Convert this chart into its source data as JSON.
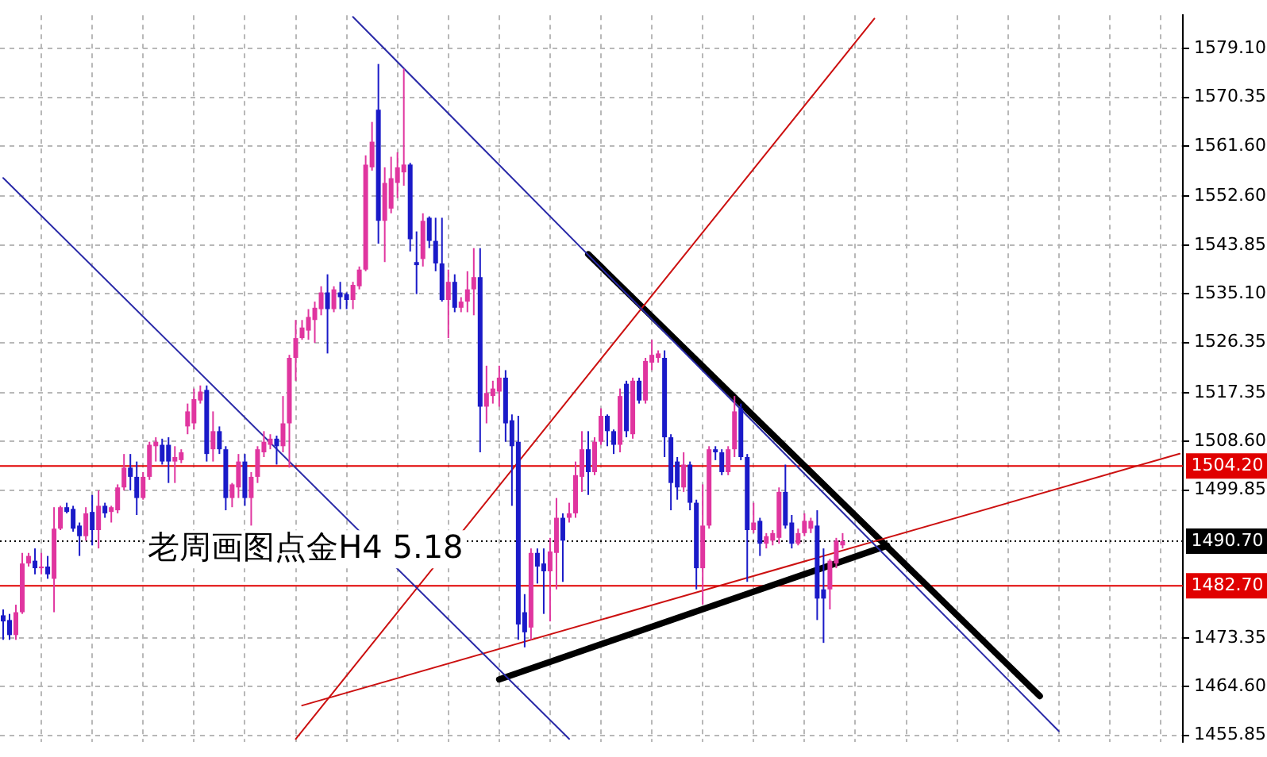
{
  "chart_data": {
    "type": "candlestick",
    "categories": [
      null,
      null,
      null,
      null,
      null,
      null,
      null,
      null,
      null,
      null,
      null,
      null,
      null,
      null,
      null,
      null,
      null,
      null,
      null,
      null,
      null,
      null,
      null,
      null,
      null,
      null,
      null,
      null,
      null,
      null,
      null,
      null,
      null,
      null,
      null,
      null,
      null,
      null,
      null,
      null,
      null,
      null,
      null,
      null,
      null,
      null,
      null,
      null,
      null,
      null,
      null,
      null,
      null,
      null,
      null,
      null,
      null,
      null,
      null,
      null,
      null,
      null,
      null,
      null,
      null,
      null,
      null,
      null,
      null,
      null,
      null,
      null,
      null,
      null,
      null,
      null,
      null,
      null,
      null,
      null,
      null,
      null,
      null,
      null,
      null,
      null,
      null,
      null,
      null,
      null,
      null,
      null,
      null,
      null,
      null,
      null,
      null,
      null,
      null,
      null,
      null,
      null,
      null,
      null,
      null,
      null,
      null,
      null,
      null,
      null,
      null,
      null,
      null,
      null,
      null,
      null,
      null,
      null,
      null,
      null,
      null,
      null,
      null,
      null,
      null,
      null,
      null,
      null,
      null,
      null,
      null,
      null,
      null,
      null,
      null,
      null,
      null,
      null,
      null,
      null,
      null,
      null,
      null,
      null,
      null,
      null,
      null,
      null,
      null,
      null,
      null,
      null,
      null,
      null,
      null,
      null,
      null,
      null,
      null,
      null,
      null,
      null,
      null,
      null,
      null,
      null,
      null,
      null,
      null,
      null,
      null,
      null,
      null,
      null,
      null,
      null,
      null,
      null,
      null,
      null,
      null,
      null,
      null,
      null,
      null,
      null
    ],
    "ohlc": [
      [
        1477.4,
        1478.45,
        1473.0,
        1476.3
      ],
      [
        1476.55,
        1477.65,
        1473.0,
        1473.85
      ],
      [
        1473.85,
        1479.3,
        1473.0,
        1477.95
      ],
      [
        1477.95,
        1488.6,
        1477.65,
        1486.7
      ],
      [
        1486.7,
        1488.6,
        1486.15,
        1488.05
      ],
      [
        1487.2,
        1489.4,
        1484.75,
        1485.85
      ],
      [
        1485.85,
        1488.6,
        1484.75,
        1486.15
      ],
      [
        1486.15,
        1488.05,
        1483.95,
        1484.75
      ],
      [
        1483.95,
        1496.8,
        1477.95,
        1492.95
      ],
      [
        1492.95,
        1497.05,
        1492.7,
        1496.8
      ],
      [
        1496.8,
        1497.6,
        1495.7,
        1495.95
      ],
      [
        1496.5,
        1497.05,
        1492.4,
        1492.95
      ],
      [
        1493.5,
        1494.05,
        1488.05,
        1491.6
      ],
      [
        1491.6,
        1496.8,
        1490.8,
        1495.7
      ],
      [
        1495.95,
        1499.0,
        1489.95,
        1492.7
      ],
      [
        1492.7,
        1499.8,
        1489.4,
        1497.05
      ],
      [
        1497.05,
        1497.6,
        1494.9,
        1495.7
      ],
      [
        1495.95,
        1497.05,
        1494.05,
        1496.8
      ],
      [
        1496.25,
        1500.9,
        1495.7,
        1500.35
      ],
      [
        1500.35,
        1506.35,
        1499.8,
        1503.9
      ],
      [
        1503.9,
        1506.35,
        1499.8,
        1502.25
      ],
      [
        1502.25,
        1505.0,
        1495.4,
        1498.45
      ],
      [
        1498.45,
        1503.1,
        1498.15,
        1502.25
      ],
      [
        1502.25,
        1508.55,
        1501.7,
        1508.0
      ],
      [
        1507.75,
        1509.35,
        1505.0,
        1508.55
      ],
      [
        1508.0,
        1509.1,
        1504.45,
        1505.0
      ],
      [
        1508.0,
        1509.35,
        1501.15,
        1505.0
      ],
      [
        1505.0,
        1507.75,
        1501.15,
        1505.8
      ],
      [
        1505.25,
        1507.2,
        1504.7,
        1506.65
      ],
      [
        1511.3,
        1515.4,
        1509.9,
        1514.0
      ],
      [
        1511.85,
        1518.1,
        1510.75,
        1516.2
      ],
      [
        1515.95,
        1518.65,
        1515.4,
        1517.55
      ],
      [
        1517.85,
        1518.65,
        1505.0,
        1506.35
      ],
      [
        1507.2,
        1514.0,
        1505.0,
        1510.45
      ],
      [
        1510.45,
        1511.3,
        1506.35,
        1507.2
      ],
      [
        1507.2,
        1507.75,
        1496.25,
        1498.45
      ],
      [
        1498.45,
        1501.15,
        1496.8,
        1500.9
      ],
      [
        1500.35,
        1506.35,
        1498.45,
        1505.0
      ],
      [
        1505.0,
        1506.35,
        1497.05,
        1498.45
      ],
      [
        1498.45,
        1503.1,
        1493.5,
        1502.25
      ],
      [
        1502.25,
        1507.75,
        1501.15,
        1507.2
      ],
      [
        1506.65,
        1510.45,
        1505.8,
        1508.55
      ],
      [
        1508.0,
        1509.9,
        1507.2,
        1509.1
      ],
      [
        1509.1,
        1509.65,
        1504.45,
        1507.75
      ],
      [
        1507.75,
        1516.75,
        1506.65,
        1511.85
      ],
      [
        1511.85,
        1524.15,
        1503.9,
        1523.6
      ],
      [
        1523.6,
        1530.4,
        1519.5,
        1527.15
      ],
      [
        1527.15,
        1530.4,
        1526.85,
        1529.05
      ],
      [
        1528.5,
        1532.35,
        1526.85,
        1530.95
      ],
      [
        1530.4,
        1533.7,
        1526.3,
        1532.6
      ],
      [
        1532.35,
        1536.45,
        1531.25,
        1535.35
      ],
      [
        1535.35,
        1538.6,
        1524.4,
        1532.35
      ],
      [
        1532.35,
        1536.45,
        1531.8,
        1535.9
      ],
      [
        1535.35,
        1537.25,
        1532.35,
        1534.5
      ],
      [
        1535.05,
        1535.35,
        1532.35,
        1534.0
      ],
      [
        1534.0,
        1537.25,
        1532.35,
        1536.7
      ],
      [
        1536.45,
        1540.0,
        1535.9,
        1539.45
      ],
      [
        1539.45,
        1559.95,
        1539.15,
        1558.3
      ],
      [
        1557.8,
        1565.95,
        1557.2,
        1562.4
      ],
      [
        1568.15,
        1576.35,
        1544.1,
        1548.2
      ],
      [
        1548.2,
        1557.8,
        1540.8,
        1555.0
      ],
      [
        1550.4,
        1559.7,
        1549.55,
        1555.85
      ],
      [
        1555.0,
        1560.5,
        1552.3,
        1557.8
      ],
      [
        1556.9,
        1575.5,
        1554.5,
        1558.3
      ],
      [
        1558.3,
        1558.6,
        1542.7,
        1544.9
      ],
      [
        1540.8,
        1546.3,
        1535.05,
        1540.25
      ],
      [
        1541.35,
        1549.55,
        1540.0,
        1548.2
      ],
      [
        1548.75,
        1549.0,
        1543.3,
        1544.6
      ],
      [
        1544.6,
        1548.75,
        1539.15,
        1540.55
      ],
      [
        1540.55,
        1548.75,
        1533.7,
        1534.0
      ],
      [
        1534.0,
        1539.45,
        1527.15,
        1537.25
      ],
      [
        1537.25,
        1538.6,
        1531.8,
        1532.6
      ],
      [
        1532.6,
        1534.5,
        1531.8,
        1533.7
      ],
      [
        1533.7,
        1539.15,
        1531.8,
        1535.9
      ],
      [
        1535.9,
        1543.3,
        1531.25,
        1538.1
      ],
      [
        1538.1,
        1543.3,
        1506.65,
        1514.85
      ],
      [
        1514.85,
        1522.2,
        1511.85,
        1517.3
      ],
      [
        1516.75,
        1519.5,
        1515.4,
        1518.1
      ],
      [
        1517.55,
        1522.2,
        1514.85,
        1520.05
      ],
      [
        1520.05,
        1521.4,
        1508.55,
        1511.85
      ],
      [
        1512.4,
        1513.45,
        1497.05,
        1507.75
      ],
      [
        1508.55,
        1513.2,
        1473.0,
        1475.75
      ],
      [
        1477.95,
        1481.2,
        1471.65,
        1474.35
      ],
      [
        1475.2,
        1489.4,
        1473.0,
        1488.6
      ],
      [
        1488.6,
        1489.4,
        1483.1,
        1486.15
      ],
      [
        1486.7,
        1489.4,
        1477.65,
        1485.3
      ],
      [
        1485.3,
        1491.3,
        1476.3,
        1488.85
      ],
      [
        1488.6,
        1498.45,
        1482.05,
        1494.9
      ],
      [
        1494.9,
        1495.7,
        1483.4,
        1490.8
      ],
      [
        1494.9,
        1497.6,
        1494.05,
        1495.7
      ],
      [
        1495.7,
        1505.0,
        1494.9,
        1502.55
      ],
      [
        1502.25,
        1510.45,
        1499.55,
        1507.2
      ],
      [
        1507.2,
        1510.45,
        1499.0,
        1503.1
      ],
      [
        1503.1,
        1509.35,
        1502.55,
        1508.55
      ],
      [
        1508.55,
        1514.55,
        1508.0,
        1513.2
      ],
      [
        1513.2,
        1513.45,
        1507.75,
        1510.45
      ],
      [
        1510.45,
        1510.75,
        1506.35,
        1508.0
      ],
      [
        1508.0,
        1518.1,
        1506.65,
        1516.75
      ],
      [
        1518.95,
        1519.5,
        1509.35,
        1510.45
      ],
      [
        1509.9,
        1520.05,
        1509.1,
        1519.5
      ],
      [
        1519.5,
        1520.05,
        1515.4,
        1515.95
      ],
      [
        1515.95,
        1523.6,
        1515.4,
        1523.05
      ],
      [
        1522.75,
        1526.85,
        1521.4,
        1524.15
      ],
      [
        1523.6,
        1524.95,
        1522.75,
        1524.4
      ],
      [
        1523.6,
        1524.95,
        1505.8,
        1509.35
      ],
      [
        1509.35,
        1509.9,
        1496.25,
        1501.15
      ],
      [
        1505.0,
        1505.8,
        1498.15,
        1500.35
      ],
      [
        1500.35,
        1506.65,
        1499.55,
        1504.45
      ],
      [
        1504.45,
        1505.0,
        1496.25,
        1497.6
      ],
      [
        1497.6,
        1498.15,
        1482.05,
        1485.85
      ],
      [
        1485.85,
        1500.9,
        1479.3,
        1493.5
      ],
      [
        1493.5,
        1507.75,
        1492.95,
        1507.2
      ],
      [
        1507.2,
        1507.75,
        1505.25,
        1506.65
      ],
      [
        1506.65,
        1507.2,
        1502.55,
        1503.1
      ],
      [
        1503.1,
        1507.75,
        1502.55,
        1507.2
      ],
      [
        1507.2,
        1516.75,
        1505.8,
        1514.0
      ],
      [
        1514.55,
        1515.4,
        1505.25,
        1505.8
      ],
      [
        1505.8,
        1506.35,
        1483.4,
        1492.7
      ],
      [
        1492.7,
        1497.6,
        1492.15,
        1494.05
      ],
      [
        1494.35,
        1494.9,
        1488.05,
        1490.25
      ],
      [
        1490.25,
        1492.15,
        1489.4,
        1491.6
      ],
      [
        1490.8,
        1492.7,
        1489.95,
        1492.15
      ],
      [
        1491.3,
        1500.35,
        1490.25,
        1499.55
      ],
      [
        1499.55,
        1504.45,
        1492.95,
        1493.5
      ],
      [
        1494.05,
        1495.4,
        1489.4,
        1490.25
      ],
      [
        1490.25,
        1492.95,
        1489.95,
        1492.15
      ],
      [
        1492.15,
        1495.7,
        1491.6,
        1494.35
      ],
      [
        1492.95,
        1494.9,
        1492.15,
        1494.35
      ],
      [
        1493.5,
        1496.25,
        1476.55,
        1480.4
      ],
      [
        1482.05,
        1489.4,
        1472.45,
        1480.4
      ],
      [
        1482.05,
        1487.5,
        1478.45,
        1487.2
      ],
      [
        1486.7,
        1491.3,
        1485.85,
        1490.8
      ],
      [
        1489.95,
        1492.15,
        1489.4,
        1490.7
      ],
      null,
      null,
      null,
      null,
      null,
      null,
      null,
      null,
      null,
      null,
      null,
      null,
      null,
      null,
      null,
      null,
      null,
      null,
      null,
      null,
      null,
      null,
      null,
      null,
      null,
      null,
      null,
      null,
      null,
      null,
      null,
      null,
      null,
      null,
      null,
      null,
      null,
      null,
      null,
      null,
      null,
      null,
      null,
      null,
      null,
      null,
      null,
      null,
      null,
      null,
      null,
      null,
      null
    ],
    "colors": [
      "#1a1ac8",
      "#1a1ac8",
      "#e0359f",
      "#e0359f",
      "#e0359f",
      "#1a1ac8",
      "#e0359f",
      "#1a1ac8",
      "#e0359f",
      "#e0359f",
      "#1a1ac8",
      "#1a1ac8",
      "#1a1ac8",
      "#e0359f",
      "#1a1ac8",
      "#e0359f",
      "#1a1ac8",
      "#e0359f",
      "#e0359f",
      "#e0359f",
      "#1a1ac8",
      "#1a1ac8",
      "#e0359f",
      "#e0359f",
      "#e0359f",
      "#1a1ac8",
      "#1a1ac8",
      "#e0359f",
      "#e0359f",
      "#e0359f",
      "#e0359f",
      "#e0359f",
      "#1a1ac8",
      "#e0359f",
      "#1a1ac8",
      "#1a1ac8",
      "#e0359f",
      "#e0359f",
      "#1a1ac8",
      "#e0359f",
      "#e0359f",
      "#e0359f",
      "#e0359f",
      "#1a1ac8",
      "#e0359f",
      "#e0359f",
      "#e0359f",
      "#e0359f",
      "#e0359f",
      "#e0359f",
      "#e0359f",
      "#1a1ac8",
      "#e0359f",
      "#1a1ac8",
      "#1a1ac8",
      "#e0359f",
      "#e0359f",
      "#e0359f",
      "#e0359f",
      "#1a1ac8",
      "#e0359f",
      "#e0359f",
      "#e0359f",
      "#e0359f",
      "#1a1ac8",
      "#1a1ac8",
      "#e0359f",
      "#1a1ac8",
      "#1a1ac8",
      "#1a1ac8",
      "#e0359f",
      "#1a1ac8",
      "#e0359f",
      "#e0359f",
      "#e0359f",
      "#1a1ac8",
      "#e0359f",
      "#e0359f",
      "#e0359f",
      "#1a1ac8",
      "#1a1ac8",
      "#1a1ac8",
      "#1a1ac8",
      "#e0359f",
      "#1a1ac8",
      "#1a1ac8",
      "#e0359f",
      "#e0359f",
      "#1a1ac8",
      "#e0359f",
      "#e0359f",
      "#e0359f",
      "#1a1ac8",
      "#e0359f",
      "#e0359f",
      "#1a1ac8",
      "#1a1ac8",
      "#e0359f",
      "#1a1ac8",
      "#e0359f",
      "#1a1ac8",
      "#e0359f",
      "#e0359f",
      "#e0359f",
      "#1a1ac8",
      "#1a1ac8",
      "#1a1ac8",
      "#e0359f",
      "#1a1ac8",
      "#1a1ac8",
      "#e0359f",
      "#e0359f",
      "#1a1ac8",
      "#1a1ac8",
      "#e0359f",
      "#e0359f",
      "#1a1ac8",
      "#1a1ac8",
      "#e0359f",
      "#1a1ac8",
      "#e0359f",
      "#e0359f",
      "#e0359f",
      "#1a1ac8",
      "#1a1ac8",
      "#e0359f",
      "#e0359f",
      "#e0359f",
      "#1a1ac8",
      "#1a1ac8",
      "#e0359f",
      "#e0359f",
      "#e0359f",
      null,
      null,
      null,
      null,
      null,
      null,
      null,
      null,
      null,
      null,
      null,
      null,
      null,
      null,
      null,
      null,
      null,
      null,
      null,
      null,
      null,
      null,
      null,
      null,
      null,
      null,
      null,
      null,
      null,
      null,
      null,
      null,
      null,
      null,
      null,
      null,
      null,
      null,
      null,
      null,
      null,
      null,
      null,
      null,
      null,
      null,
      null,
      null,
      null,
      null,
      null,
      null,
      null
    ],
    "series": [
      {
        "type": "line",
        "color": "#2a2aa8",
        "values": [
          1555.9,
          null,
          null,
          null,
          null,
          null,
          null,
          null,
          null,
          null,
          null,
          null,
          null,
          null,
          null,
          null,
          null,
          null,
          null,
          null,
          null,
          null,
          null,
          null,
          null,
          null,
          null,
          null,
          null,
          null,
          null,
          null,
          null,
          null,
          null,
          null,
          null,
          null,
          null,
          null,
          null,
          null,
          null,
          null,
          null,
          null,
          null,
          null,
          null,
          null,
          null,
          null,
          null,
          null,
          null,
          null,
          null,
          null,
          null,
          null,
          null,
          null,
          null,
          null,
          null,
          null,
          null,
          null,
          null,
          null,
          null,
          null,
          null,
          null,
          null,
          null,
          null,
          null,
          null,
          null,
          null,
          null,
          null,
          null,
          null,
          null,
          null,
          null,
          null,
          1455.2,
          null,
          null,
          null,
          null,
          null,
          null,
          null,
          null,
          null,
          null,
          null,
          null,
          null,
          null,
          null,
          null,
          null,
          null,
          null,
          null,
          null,
          null,
          null,
          null,
          null,
          null,
          null,
          null,
          null,
          null,
          null,
          null,
          null,
          null,
          null,
          null,
          null,
          null,
          null,
          null,
          null,
          null,
          null,
          null,
          null,
          null,
          null,
          null,
          null,
          null,
          null,
          null,
          null,
          null,
          null,
          null,
          null,
          null,
          null,
          null,
          null,
          null,
          null,
          null,
          null,
          null,
          null,
          null,
          null,
          null,
          null,
          null,
          null,
          null,
          null,
          null,
          null,
          null,
          null,
          null,
          null,
          null,
          null,
          null,
          null,
          null,
          null,
          null,
          null,
          null,
          null,
          null,
          null,
          null,
          null,
          null
        ]
      },
      {
        "type": "line",
        "color": "#2a2aa8",
        "values": [
          null,
          null,
          null,
          null,
          null,
          null,
          null,
          null,
          null,
          null,
          null,
          null,
          null,
          null,
          null,
          null,
          null,
          null,
          null,
          null,
          null,
          null,
          null,
          null,
          null,
          null,
          null,
          null,
          null,
          null,
          null,
          null,
          null,
          null,
          null,
          null,
          null,
          null,
          null,
          null,
          null,
          null,
          null,
          null,
          null,
          null,
          null,
          null,
          null,
          null,
          null,
          null,
          null,
          null,
          null,
          1584.8,
          null,
          null,
          null,
          null,
          null,
          null,
          null,
          null,
          null,
          null,
          null,
          null,
          null,
          null,
          null,
          null,
          null,
          null,
          null,
          null,
          null,
          null,
          null,
          null,
          null,
          null,
          null,
          null,
          null,
          null,
          null,
          null,
          null,
          null,
          null,
          null,
          null,
          null,
          null,
          null,
          null,
          null,
          null,
          null,
          null,
          null,
          null,
          null,
          null,
          null,
          null,
          null,
          null,
          null,
          null,
          null,
          null,
          null,
          null,
          null,
          null,
          null,
          null,
          null,
          null,
          null,
          null,
          null,
          null,
          null,
          null,
          null,
          null,
          null,
          null,
          null,
          null,
          null,
          null,
          null,
          null,
          null,
          null,
          null,
          null,
          null,
          null,
          null,
          null,
          null,
          null,
          null,
          null,
          null,
          null,
          null,
          null,
          null,
          null,
          null,
          null,
          null,
          null,
          null,
          null,
          null,
          null,
          null,
          null,
          null,
          1456.6,
          null,
          null,
          null,
          null,
          null,
          null,
          null,
          null,
          null,
          null,
          null,
          null,
          null,
          null,
          null,
          null,
          null,
          null,
          null
        ]
      },
      {
        "type": "line",
        "color": "#cc1010",
        "values": [
          null,
          null,
          null,
          null,
          null,
          null,
          null,
          null,
          null,
          null,
          null,
          null,
          null,
          null,
          null,
          null,
          null,
          null,
          null,
          null,
          null,
          null,
          null,
          null,
          null,
          null,
          null,
          null,
          null,
          null,
          null,
          null,
          null,
          null,
          null,
          null,
          null,
          null,
          null,
          null,
          null,
          null,
          null,
          null,
          null,
          null,
          1455.2,
          null,
          null,
          null,
          null,
          null,
          null,
          null,
          null,
          null,
          null,
          null,
          null,
          null,
          null,
          null,
          null,
          null,
          null,
          null,
          null,
          null,
          null,
          null,
          null,
          null,
          null,
          null,
          null,
          null,
          null,
          null,
          null,
          null,
          null,
          null,
          null,
          null,
          null,
          null,
          null,
          null,
          null,
          null,
          null,
          null,
          null,
          null,
          null,
          null,
          null,
          null,
          null,
          null,
          null,
          null,
          null,
          null,
          null,
          null,
          null,
          null,
          null,
          null,
          null,
          null,
          null,
          null,
          null,
          null,
          null,
          null,
          null,
          null,
          null,
          null,
          null,
          null,
          null,
          null,
          null,
          null,
          null,
          null,
          null,
          null,
          null,
          null,
          null,
          null,
          null,
          1584.5,
          null,
          null,
          null,
          null,
          null,
          null,
          null,
          null,
          null,
          null,
          null,
          null,
          null,
          null,
          null,
          null,
          null,
          null,
          null,
          null,
          null,
          null,
          null,
          null,
          null,
          null,
          null,
          null,
          null,
          null,
          null,
          null,
          null,
          null,
          null,
          null,
          null,
          null,
          null,
          null,
          null,
          null,
          null,
          null,
          null,
          null,
          null,
          null
        ]
      },
      {
        "type": "line",
        "color": "#cc1010",
        "values": [
          null,
          null,
          null,
          null,
          null,
          null,
          null,
          null,
          null,
          null,
          null,
          null,
          null,
          null,
          null,
          null,
          null,
          null,
          null,
          null,
          null,
          null,
          null,
          null,
          null,
          null,
          null,
          null,
          null,
          null,
          null,
          null,
          null,
          null,
          null,
          null,
          null,
          null,
          null,
          null,
          null,
          null,
          null,
          null,
          null,
          null,
          null,
          1461.2,
          null,
          null,
          null,
          null,
          null,
          null,
          null,
          null,
          null,
          null,
          null,
          null,
          null,
          null,
          null,
          null,
          null,
          null,
          null,
          null,
          null,
          null,
          null,
          null,
          null,
          null,
          null,
          null,
          null,
          null,
          null,
          null,
          null,
          null,
          null,
          null,
          null,
          null,
          null,
          null,
          null,
          null,
          null,
          null,
          null,
          null,
          null,
          null,
          null,
          null,
          null,
          null,
          null,
          null,
          null,
          null,
          null,
          null,
          null,
          null,
          null,
          null,
          null,
          null,
          null,
          null,
          null,
          null,
          null,
          null,
          null,
          null,
          null,
          null,
          null,
          null,
          null,
          null,
          null,
          null,
          null,
          null,
          null,
          null,
          null,
          null,
          null,
          null,
          null,
          null,
          null,
          null,
          null,
          null,
          null,
          null,
          null,
          null,
          null,
          null,
          null,
          null,
          null,
          null,
          null,
          null,
          null,
          null,
          null,
          null,
          null,
          null,
          null,
          null,
          null,
          null,
          null,
          null,
          null,
          null,
          null,
          null,
          null,
          null,
          null,
          null,
          null,
          null,
          null,
          null,
          null,
          null,
          null,
          null,
          null,
          null,
          null,
          1506.4
        ]
      },
      {
        "type": "line",
        "color": "#000000",
        "values": [
          null,
          null,
          null,
          null,
          null,
          null,
          null,
          null,
          null,
          null,
          null,
          null,
          null,
          null,
          null,
          null,
          null,
          null,
          null,
          null,
          null,
          null,
          null,
          null,
          null,
          null,
          null,
          null,
          null,
          null,
          null,
          null,
          null,
          null,
          null,
          null,
          null,
          null,
          null,
          null,
          null,
          null,
          null,
          null,
          null,
          null,
          null,
          null,
          null,
          null,
          null,
          null,
          null,
          null,
          null,
          null,
          null,
          null,
          null,
          null,
          null,
          null,
          null,
          null,
          null,
          null,
          null,
          null,
          null,
          null,
          null,
          null,
          null,
          null,
          null,
          null,
          null,
          null,
          null,
          null,
          null,
          null,
          null,
          null,
          null,
          null,
          null,
          null,
          null,
          null,
          null,
          null,
          1542.2,
          null,
          null,
          null,
          null,
          null,
          null,
          null,
          null,
          null,
          null,
          null,
          null,
          null,
          null,
          null,
          null,
          null,
          null,
          null,
          null,
          null,
          null,
          null,
          null,
          null,
          null,
          null,
          null,
          null,
          null,
          null,
          null,
          null,
          null,
          null,
          null,
          null,
          null,
          null,
          null,
          null,
          null,
          null,
          null,
          null,
          null,
          null,
          null,
          null,
          null,
          null,
          null,
          null,
          null,
          null,
          null,
          null,
          null,
          null,
          null,
          null,
          null,
          null,
          null,
          null,
          null,
          null,
          null,
          null,
          null,
          1462.9,
          null,
          null,
          null,
          null,
          null,
          null,
          null,
          null,
          null,
          null,
          null,
          null,
          null,
          null,
          null,
          null,
          null,
          null,
          null,
          null,
          null,
          null
        ]
      },
      {
        "type": "line",
        "color": "#000000",
        "values": [
          null,
          null,
          null,
          null,
          null,
          null,
          null,
          null,
          null,
          null,
          null,
          null,
          null,
          null,
          null,
          null,
          null,
          null,
          null,
          null,
          null,
          null,
          null,
          null,
          null,
          null,
          null,
          null,
          null,
          null,
          null,
          null,
          null,
          null,
          null,
          null,
          null,
          null,
          null,
          null,
          null,
          null,
          null,
          null,
          null,
          null,
          null,
          null,
          null,
          null,
          null,
          null,
          null,
          null,
          null,
          null,
          null,
          null,
          null,
          null,
          null,
          null,
          null,
          null,
          null,
          null,
          null,
          null,
          null,
          null,
          null,
          null,
          null,
          null,
          null,
          null,
          null,
          null,
          1465.9,
          null,
          null,
          null,
          null,
          null,
          null,
          null,
          null,
          null,
          null,
          null,
          null,
          null,
          null,
          null,
          null,
          null,
          null,
          null,
          null,
          null,
          null,
          null,
          null,
          null,
          null,
          null,
          null,
          null,
          null,
          null,
          null,
          null,
          null,
          null,
          null,
          null,
          null,
          null,
          null,
          null,
          null,
          null,
          null,
          null,
          null,
          null,
          null,
          null,
          null,
          null,
          null,
          null,
          null,
          null,
          null,
          null,
          null,
          null,
          null,
          1489.9,
          null,
          null,
          null,
          null,
          null,
          null,
          null,
          null,
          null,
          null,
          null,
          null,
          null,
          null,
          null,
          null,
          null,
          null,
          null,
          null,
          null,
          null,
          null,
          null,
          null,
          null,
          null,
          null,
          null,
          null,
          null,
          null,
          null,
          null,
          null,
          null,
          null,
          null,
          null,
          null,
          null,
          null,
          null,
          null,
          null,
          null
        ]
      }
    ],
    "ylim": [
      1454.7,
      1585.1
    ],
    "yticks": [
      {
        "value": 1579.1,
        "label": "1579.10"
      },
      {
        "value": 1570.35,
        "label": "1570.35"
      },
      {
        "value": 1561.6,
        "label": "1561.60"
      },
      {
        "value": 1552.6,
        "label": "1552.60"
      },
      {
        "value": 1543.85,
        "label": "1543.85"
      },
      {
        "value": 1535.1,
        "label": "1535.10"
      },
      {
        "value": 1526.35,
        "label": "1526.35"
      },
      {
        "value": 1517.35,
        "label": "1517.35"
      },
      {
        "value": 1508.6,
        "label": "1508.60"
      },
      {
        "value": 1499.85,
        "label": "1499.85"
      },
      {
        "value": 1473.35,
        "label": "1473.35"
      },
      {
        "value": 1464.6,
        "label": "1464.60"
      },
      {
        "value": 1455.85,
        "label": "1455.85"
      }
    ],
    "ref_lines": [
      {
        "axis": "y",
        "value": 1504.2,
        "label": "1504.20",
        "color": "#e00000"
      },
      {
        "axis": "y",
        "value": 1490.7,
        "label": "1490.70",
        "color": "#000000",
        "line_style": "dotted"
      },
      {
        "axis": "y",
        "value": 1482.7,
        "label": "1482.70",
        "color": "#e00000"
      }
    ],
    "annotations": [
      "老周画图点金H4 5.18"
    ],
    "grid": true,
    "tick_labels": "y",
    "legend": false
  }
}
